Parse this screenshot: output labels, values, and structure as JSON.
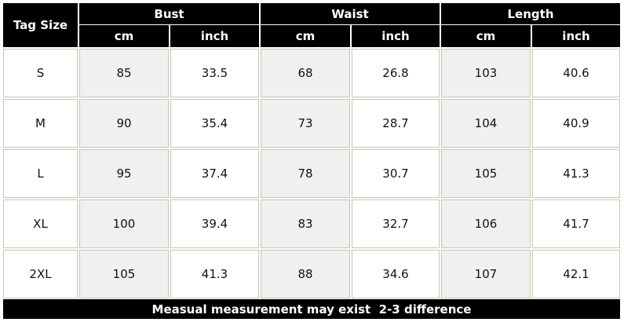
{
  "table": {
    "header": {
      "tag_size": "Tag Size",
      "groups": [
        "Bust",
        "Waist",
        "Length"
      ],
      "units": [
        "cm",
        "inch",
        "cm",
        "inch",
        "cm",
        "inch"
      ]
    },
    "rows": [
      [
        "S",
        "85",
        "33.5",
        "68",
        "26.8",
        "103",
        "40.6"
      ],
      [
        "M",
        "90",
        "35.4",
        "73",
        "28.7",
        "104",
        "40.9"
      ],
      [
        "L",
        "95",
        "37.4",
        "78",
        "30.7",
        "105",
        "41.3"
      ],
      [
        "XL",
        "100",
        "39.4",
        "83",
        "32.7",
        "106",
        "41.7"
      ],
      [
        "2XL",
        "105",
        "41.3",
        "88",
        "34.6",
        "107",
        "42.1"
      ]
    ]
  },
  "footer": "Measual measurement may exist  2-3 difference"
}
